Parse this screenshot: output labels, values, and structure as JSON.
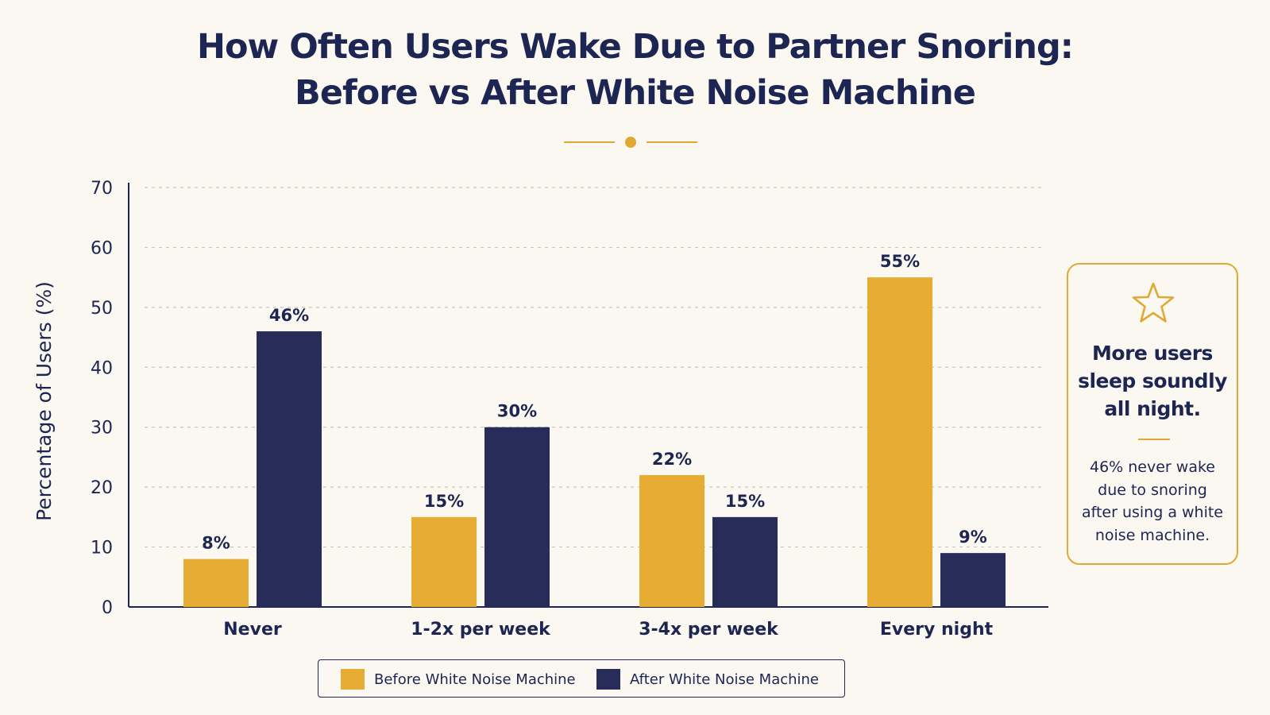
{
  "title": {
    "line1": "How Often Users Wake Due to Partner Snoring:",
    "line2": "Before vs After White Noise Machine"
  },
  "callout": {
    "icon": "star-outline-icon",
    "heading_lines": [
      "More users",
      "sleep soundly",
      "all night."
    ],
    "body_lines": [
      "46% never wake",
      "due to snoring",
      "after using a white",
      "noise machine."
    ]
  },
  "colors": {
    "background": "#fbf8f1",
    "before": "#e6ac34",
    "after": "#282c58",
    "text": "#1d2552",
    "accent": "#e0a934"
  },
  "chart_data": {
    "type": "bar",
    "title": "How Often Users Wake Due to Partner Snoring: Before vs After White Noise Machine",
    "xlabel": "",
    "ylabel": "Percentage of Users (%)",
    "categories": [
      "Never",
      "1-2x per week",
      "3-4x per week",
      "Every night"
    ],
    "series": [
      {
        "name": "Before White Noise Machine",
        "values": [
          8,
          15,
          22,
          55
        ],
        "labels": [
          "8%",
          "15%",
          "22%",
          "55%"
        ],
        "color": "#e6ac34"
      },
      {
        "name": "After White Noise Machine",
        "values": [
          46,
          30,
          15,
          9
        ],
        "labels": [
          "46%",
          "30%",
          "15%",
          "9%"
        ],
        "color": "#282c58"
      }
    ],
    "ylim": [
      0,
      70
    ],
    "yticks": [
      0,
      10,
      20,
      30,
      40,
      50,
      60,
      70
    ],
    "grid": true,
    "legend_position": "bottom-center"
  }
}
